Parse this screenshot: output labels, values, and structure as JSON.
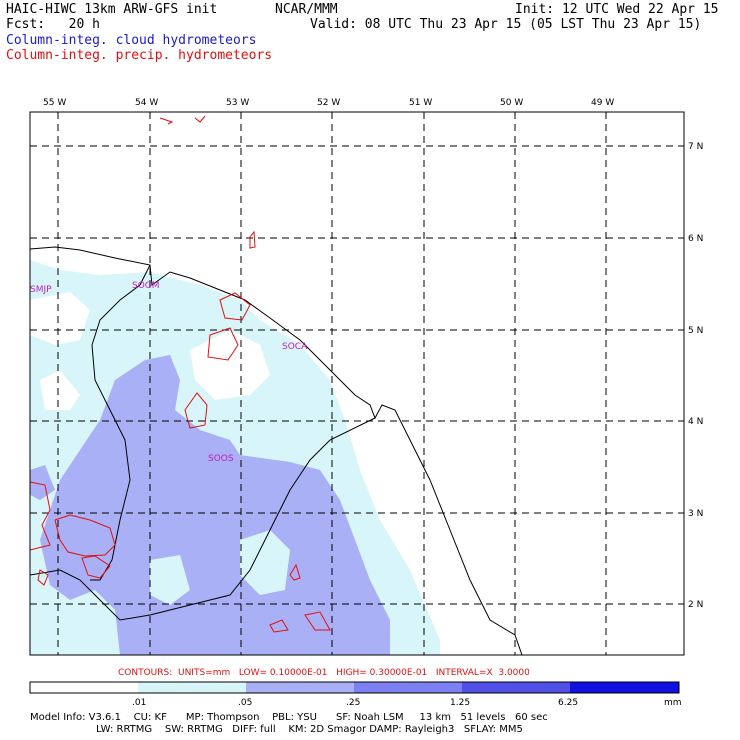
{
  "header": {
    "model": "HAIC-HIWC 13km ARW-GFS init",
    "org": "NCAR/MMM",
    "init": "Init: 12 UTC Wed 22 Apr 15",
    "fcst": "Fcst:   20 h",
    "valid": "Valid: 08 UTC Thu 23 Apr 15 (05 LST Thu 23 Apr 15)",
    "field1": "Column-integ. cloud hydrometeors",
    "field2": "Column-integ. precip. hydrometeors"
  },
  "map": {
    "lon_labels": [
      "55 W",
      "54 W",
      "53 W",
      "52 W",
      "51 W",
      "50 W",
      "49 W"
    ],
    "lat_labels": [
      "7 N",
      "6 N",
      "5 N",
      "4 N",
      "3 N",
      "2 N"
    ],
    "stations": [
      "SMJP",
      "SOGM",
      "SOCA",
      "SOOS"
    ]
  },
  "contours_line": "CONTOURS:  UNITS=mm   LOW= 0.10000E-01   HIGH= 0.30000E-01   INTERVAL=X  3.0000",
  "colorbar": {
    "ticks": [
      ".01",
      ".05",
      ".25",
      "1.25",
      "6.25"
    ],
    "unit": "mm",
    "colors": [
      "#ffffff",
      "#d8f6fa",
      "#aab0f5",
      "#7c80f0",
      "#5050e8",
      "#1010e0"
    ]
  },
  "footer": {
    "line1": "Model Info: V3.6.1    CU: KF      MP: Thompson    PBL: YSU      SF: Noah LSM     13 km   51 levels   60 sec",
    "line2": "LW: RRTMG    SW: RRTMG   DIFF: full    KM: 2D Smagor DAMP: Rayleigh3   SFLAY: MM5"
  }
}
